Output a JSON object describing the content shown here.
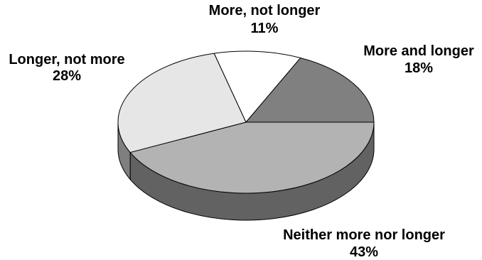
{
  "chart_data": {
    "type": "pie",
    "style": "3d",
    "start_angle_deg": 0,
    "direction": "clockwise",
    "slices": [
      {
        "label": "Neither more nor longer",
        "value": 43,
        "display": "43%",
        "color": "#b3b3b3"
      },
      {
        "label": "Longer, not more",
        "value": 28,
        "display": "28%",
        "color": "#e6e6e6"
      },
      {
        "label": "More, not longer",
        "value": 11,
        "display": "11%",
        "color": "#ffffff"
      },
      {
        "label": "More and longer",
        "value": 18,
        "display": "18%",
        "color": "#808080"
      }
    ],
    "edge_color": "#000000",
    "side_darken": 0.55
  }
}
